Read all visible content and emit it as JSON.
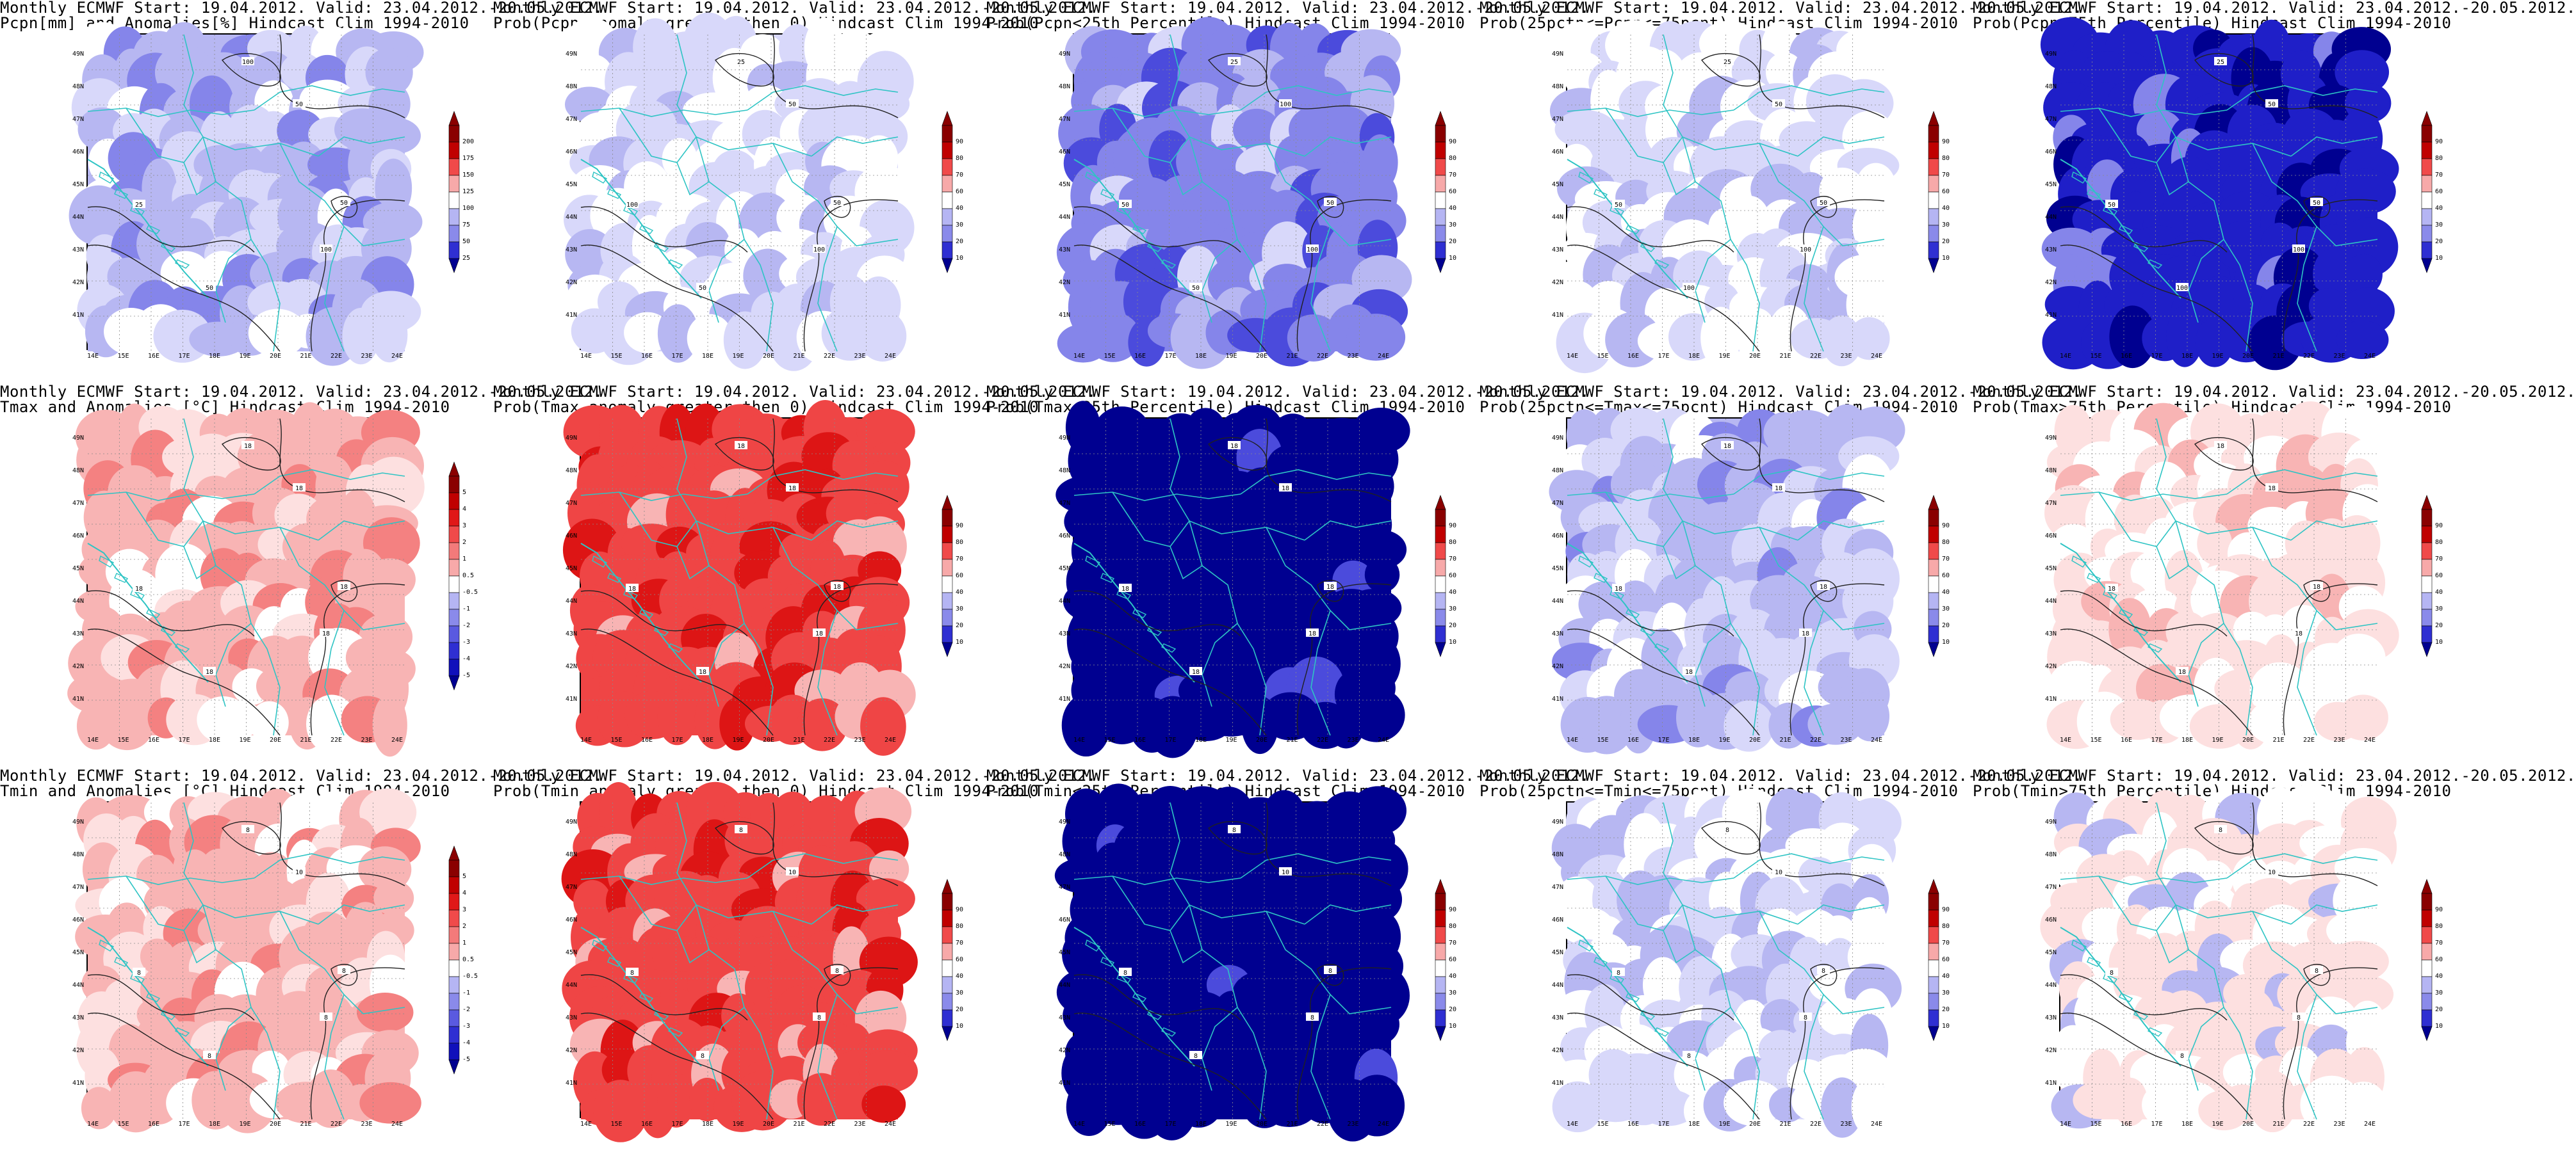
{
  "colors": {
    "frame": "#000000",
    "borders": "#2ec4c4",
    "contours": "#202020",
    "red_scale": [
      "#ffffff",
      "#fde0e0",
      "#f8b4b4",
      "#f48181",
      "#ef4545",
      "#dd1515",
      "#8a0000"
    ],
    "blue_scale": [
      "#ffffff",
      "#d8d8fa",
      "#b7b7f2",
      "#8585ea",
      "#4b4bdc",
      "#1f1fc8",
      "#000090"
    ]
  },
  "axes": {
    "lat_labels": [
      "49N",
      "48N",
      "47N",
      "46N",
      "45N",
      "44N",
      "43N",
      "42N",
      "41N"
    ],
    "lon_labels": [
      "14E",
      "15E",
      "16E",
      "17E",
      "18E",
      "19E",
      "20E",
      "21E",
      "22E",
      "23E",
      "24E"
    ]
  },
  "scales": {
    "precip": [
      "200",
      "175",
      "150",
      "125",
      "100",
      "75",
      "50",
      "25"
    ],
    "prob": [
      "90",
      "80",
      "70",
      "60",
      "40",
      "30",
      "20",
      "10"
    ],
    "temp": [
      "5",
      "4",
      "3",
      "2",
      "1",
      "0.5",
      "-0.5",
      "-1",
      "-2",
      "-3",
      "-4",
      "-5"
    ]
  },
  "panels": [
    {
      "row": 0,
      "col": 0,
      "line1": "Monthly ECMWF Start: 19.04.2012. Valid: 23.04.2012.-20.05.2012.",
      "line2": "Pcpn[mm] and Anomalies[%] Hindcast Clim 1994-2010",
      "scale": "precip",
      "palette": "blue",
      "level": 0.35,
      "dominant": 2,
      "contour_labels": [
        "25",
        "50",
        "50",
        "100",
        "100",
        "50"
      ]
    },
    {
      "row": 0,
      "col": 1,
      "line1": "Monthly ECMWF Start: 19.04.2012. Valid: 23.04.2012.-20.05.2012.",
      "line2": "Prob(Pcpn anomaly greater then 0) Hindcast Clim 1994-2010",
      "scale": "prob",
      "palette": "blue",
      "level": 0.35,
      "dominant": 1,
      "contour_labels": [
        "100",
        "50",
        "50",
        "100",
        "25",
        "50"
      ]
    },
    {
      "row": 0,
      "col": 2,
      "line1": "Monthly ECMWF Start: 19.04.2012. Valid: 23.04.2012.-20.05.2012.",
      "line2": "Prob(Pcpn<25th Percentile) Hindcast Clim 1994-2010",
      "scale": "prob",
      "palette": "blue",
      "level": 0.55,
      "dominant": 3,
      "contour_labels": [
        "50",
        "50",
        "100",
        "100",
        "25",
        "50"
      ]
    },
    {
      "row": 0,
      "col": 3,
      "line1": "Monthly ECMWF Start: 19.04.2012. Valid: 23.04.2012.-20.05.2012.",
      "line2": "Prob(25pctn<=Pcpn<=75pcnt) Hindcast Clim 1994-2010",
      "scale": "prob",
      "palette": "blue",
      "level": 0.2,
      "dominant": 1,
      "contour_labels": [
        "50",
        "100",
        "50",
        "100",
        "25",
        "50"
      ]
    },
    {
      "row": 0,
      "col": 4,
      "line1": "Monthly ECMWF Start: 19.04.2012. Valid: 23.04.2012.-20.05.2012.",
      "line2": "Prob(Pcpn>75th Percentile) Hindcast Clim 1994-2010",
      "scale": "prob",
      "palette": "blue",
      "level": 0.85,
      "dominant": 5,
      "contour_labels": [
        "50",
        "100",
        "50",
        "100",
        "25",
        "50"
      ]
    },
    {
      "row": 1,
      "col": 0,
      "line1": "Monthly ECMWF Start: 19.04.2012. Valid: 23.04.2012.-20.05.2012.",
      "line2": "Tmax and Anomalies [°C] Hindcast Clim 1994-2010",
      "scale": "temp",
      "palette": "red",
      "level": 0.55,
      "dominant": 2,
      "contour_labels": [
        "18",
        "18",
        "18",
        "18",
        "18",
        "18"
      ]
    },
    {
      "row": 1,
      "col": 1,
      "line1": "Monthly ECMWF Start: 19.04.2012. Valid: 23.04.2012.-20.05.2012.",
      "line2": "Prob(Tmax anomaly greater then 0) Hindcast Clim 1994-2010",
      "scale": "prob",
      "palette": "red",
      "level": 0.8,
      "dominant": 4,
      "contour_labels": [
        "18",
        "18",
        "18",
        "18",
        "18",
        "18"
      ]
    },
    {
      "row": 1,
      "col": 2,
      "line1": "Monthly ECMWF Start: 19.04.2012. Valid: 23.04.2012.-20.05.2012.",
      "line2": "Prob(Tmax<25th Percentile) Hindcast Clim 1994-2010",
      "scale": "prob",
      "palette": "blue",
      "level": 0.95,
      "dominant": 6,
      "contour_labels": [
        "18",
        "18",
        "18",
        "18",
        "18",
        "18"
      ]
    },
    {
      "row": 1,
      "col": 3,
      "line1": "Monthly ECMWF Start: 19.04.2012. Valid: 23.04.2012.-20.05.2012.",
      "line2": "Prob(25pctn<=Tmax<=75pcnt) Hindcast Clim 1994-2010",
      "scale": "prob",
      "palette": "blue",
      "level": 0.45,
      "dominant": 2,
      "contour_labels": [
        "18",
        "18",
        "18",
        "18",
        "18",
        "18"
      ]
    },
    {
      "row": 1,
      "col": 4,
      "line1": "Monthly ECMWF Start: 19.04.2012. Valid: 23.04.2012.-20.05.2012.",
      "line2": "Prob(Tmax>75th Percentile) Hindcast Clim 1994-2010",
      "scale": "prob",
      "palette": "red",
      "level": 0.35,
      "dominant": 1,
      "contour_labels": [
        "18",
        "18",
        "18",
        "18",
        "18",
        "18"
      ]
    },
    {
      "row": 2,
      "col": 0,
      "line1": "Monthly ECMWF Start: 19.04.2012. Valid: 23.04.2012.-20.05.2012.",
      "line2": "Tmin and Anomalies [°C] Hindcast Clim 1994-2010",
      "scale": "temp",
      "palette": "red",
      "level": 0.45,
      "dominant": 2,
      "contour_labels": [
        "8",
        "8",
        "10",
        "8",
        "8",
        "8"
      ]
    },
    {
      "row": 2,
      "col": 1,
      "line1": "Monthly ECMWF Start: 19.04.2012. Valid: 23.04.2012.-20.05.2012.",
      "line2": "Prob(Tmin anomaly greater then 0) Hindcast Clim 1994-2010",
      "scale": "prob",
      "palette": "red",
      "level": 0.85,
      "dominant": 4,
      "contour_labels": [
        "8",
        "8",
        "10",
        "8",
        "8",
        "8"
      ]
    },
    {
      "row": 2,
      "col": 2,
      "line1": "Monthly ECMWF Start: 19.04.2012. Valid: 23.04.2012.-20.05.2012.",
      "line2": "Prob(Tmin<25th Percentile) Hindcast Clim 1994-2010",
      "scale": "prob",
      "palette": "blue",
      "level": 0.95,
      "dominant": 6,
      "contour_labels": [
        "8",
        "8",
        "10",
        "8",
        "8",
        "8"
      ]
    },
    {
      "row": 2,
      "col": 3,
      "line1": "Monthly ECMWF Start: 19.04.2012. Valid: 23.04.2012.-20.05.2012.",
      "line2": "Prob(25pctn<=Tmin<=75pcnt) Hindcast Clim 1994-2010",
      "scale": "prob",
      "palette": "blue",
      "level": 0.3,
      "dominant": 1,
      "contour_labels": [
        "8",
        "8",
        "10",
        "8",
        "8",
        "8"
      ]
    },
    {
      "row": 2,
      "col": 4,
      "line1": "Monthly ECMWF Start: 19.04.2012. Valid: 23.04.2012.-20.05.2012.",
      "line2": "Prob(Tmin>75th Percentile) Hindcast Clim 1994-2010",
      "scale": "prob",
      "palette": "mixed",
      "level": 0.3,
      "dominant": 1,
      "contour_labels": [
        "8",
        "8",
        "10",
        "8",
        "8",
        "8"
      ]
    }
  ]
}
